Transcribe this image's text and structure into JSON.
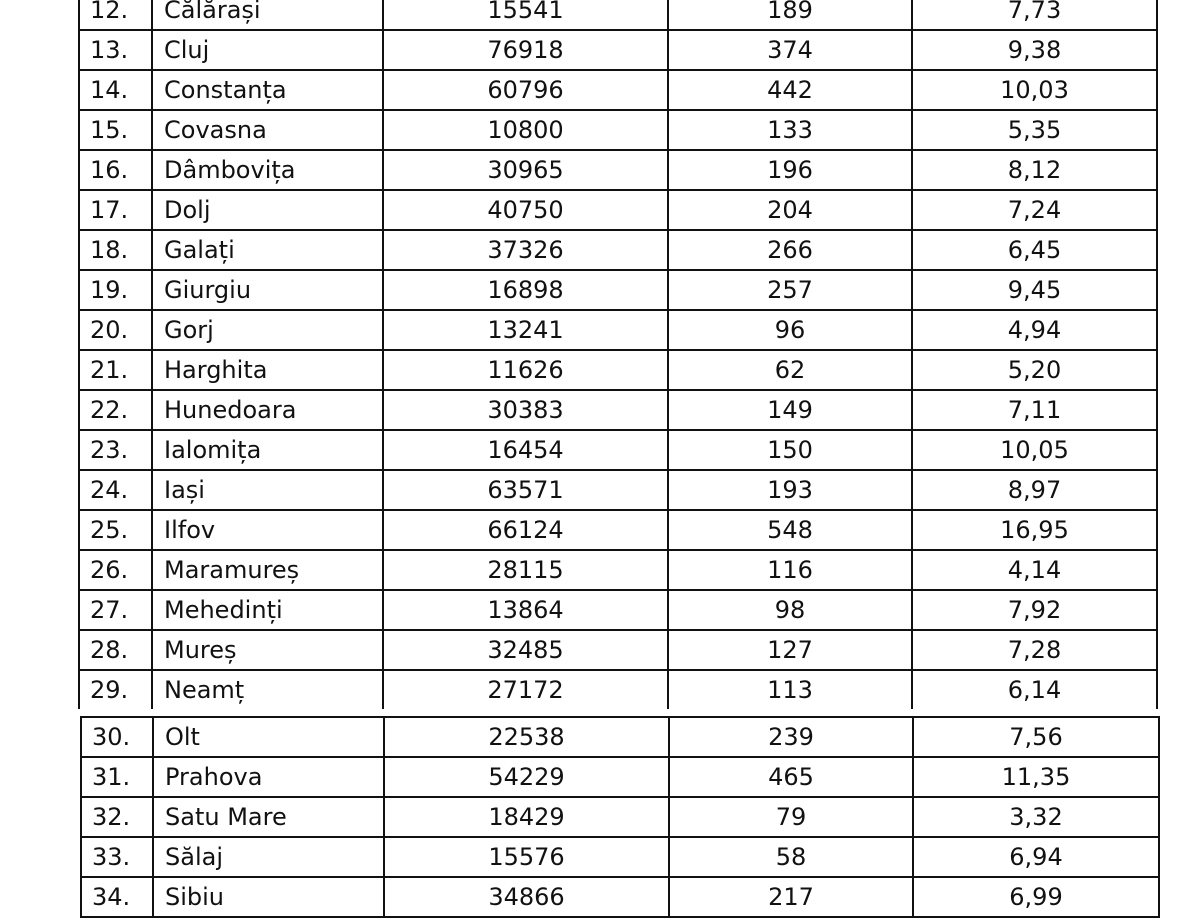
{
  "table_top": [
    [
      "12.",
      "Călărași",
      "15541",
      "189",
      "7,73"
    ],
    [
      "13.",
      "Cluj",
      "76918",
      "374",
      "9,38"
    ],
    [
      "14.",
      "Constanța",
      "60796",
      "442",
      "10,03"
    ],
    [
      "15.",
      "Covasna",
      "10800",
      "133",
      "5,35"
    ],
    [
      "16.",
      "Dâmbovița",
      "30965",
      "196",
      "8,12"
    ],
    [
      "17.",
      "Dolj",
      "40750",
      "204",
      "7,24"
    ],
    [
      "18.",
      "Galați",
      "37326",
      "266",
      "6,45"
    ],
    [
      "19.",
      "Giurgiu",
      "16898",
      "257",
      "9,45"
    ],
    [
      "20.",
      "Gorj",
      "13241",
      "96",
      "4,94"
    ],
    [
      "21.",
      "Harghita",
      "11626",
      "62",
      "5,20"
    ],
    [
      "22.",
      "Hunedoara",
      "30383",
      "149",
      "7,11"
    ],
    [
      "23.",
      "Ialomița",
      "16454",
      "150",
      "10,05"
    ],
    [
      "24.",
      "Iași",
      "63571",
      "193",
      "8,97"
    ],
    [
      "25.",
      "Ilfov",
      "66124",
      "548",
      "16,95"
    ],
    [
      "26.",
      "Maramureș",
      "28115",
      "116",
      "4,14"
    ],
    [
      "27.",
      "Mehedinți",
      "13864",
      "98",
      "7,92"
    ],
    [
      "28.",
      "Mureș",
      "32485",
      "127",
      "7,28"
    ],
    [
      "29.",
      "Neamț",
      "27172",
      "113",
      "6,14"
    ]
  ],
  "table_bottom": [
    [
      "30.",
      "Olt",
      "22538",
      "239",
      "7,56"
    ],
    [
      "31.",
      "Prahova",
      "54229",
      "465",
      "11,35"
    ],
    [
      "32.",
      "Satu Mare",
      "18429",
      "79",
      "3,32"
    ],
    [
      "33.",
      "Sălaj",
      "15576",
      "58",
      "6,94"
    ],
    [
      "34.",
      "Sibiu",
      "34866",
      "217",
      "6,99"
    ]
  ]
}
